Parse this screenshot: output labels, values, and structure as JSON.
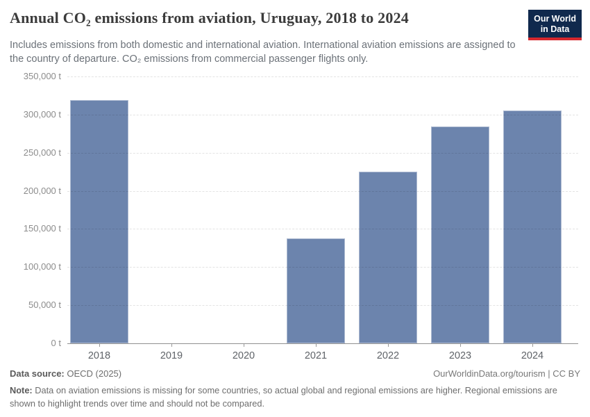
{
  "header": {
    "title": "Annual CO₂ emissions from aviation, Uruguay, 2018 to 2024",
    "subtitle": "Includes emissions from both domestic and international aviation. International aviation emissions are assigned to the country of departure. CO₂ emissions from commercial passenger flights only.",
    "logo": {
      "line1": "Our World",
      "line2": "in Data",
      "bg_color": "#10294d",
      "accent_color": "#d7282e"
    }
  },
  "chart_data": {
    "type": "bar",
    "title": "Annual CO₂ emissions from aviation, Uruguay, 2018 to 2024",
    "categories": [
      "2018",
      "2019",
      "2020",
      "2021",
      "2022",
      "2023",
      "2024"
    ],
    "values": [
      319000,
      null,
      null,
      138000,
      225000,
      284000,
      305000
    ],
    "unit_suffix": " t",
    "xlabel": "",
    "ylabel": "",
    "ylim": [
      0,
      350000
    ],
    "ytick_step": 50000,
    "ytick_labels": [
      "0 t",
      "50,000 t",
      "100,000 t",
      "150,000 t",
      "200,000 t",
      "250,000 t",
      "300,000 t",
      "350,000 t"
    ],
    "grid": "horizontal-dashed",
    "legend": "none",
    "bar_color": "#6c84ad",
    "missing_categories": [
      "2019",
      "2020"
    ]
  },
  "footer": {
    "source_label": "Data source:",
    "source_value": " OECD (2025)",
    "attribution": "OurWorldinData.org/tourism | CC BY",
    "note_label": "Note:",
    "note_value": " Data on aviation emissions is missing for some countries, so actual global and regional emissions are higher. Regional emissions are shown to highlight trends over time and should not be compared."
  }
}
